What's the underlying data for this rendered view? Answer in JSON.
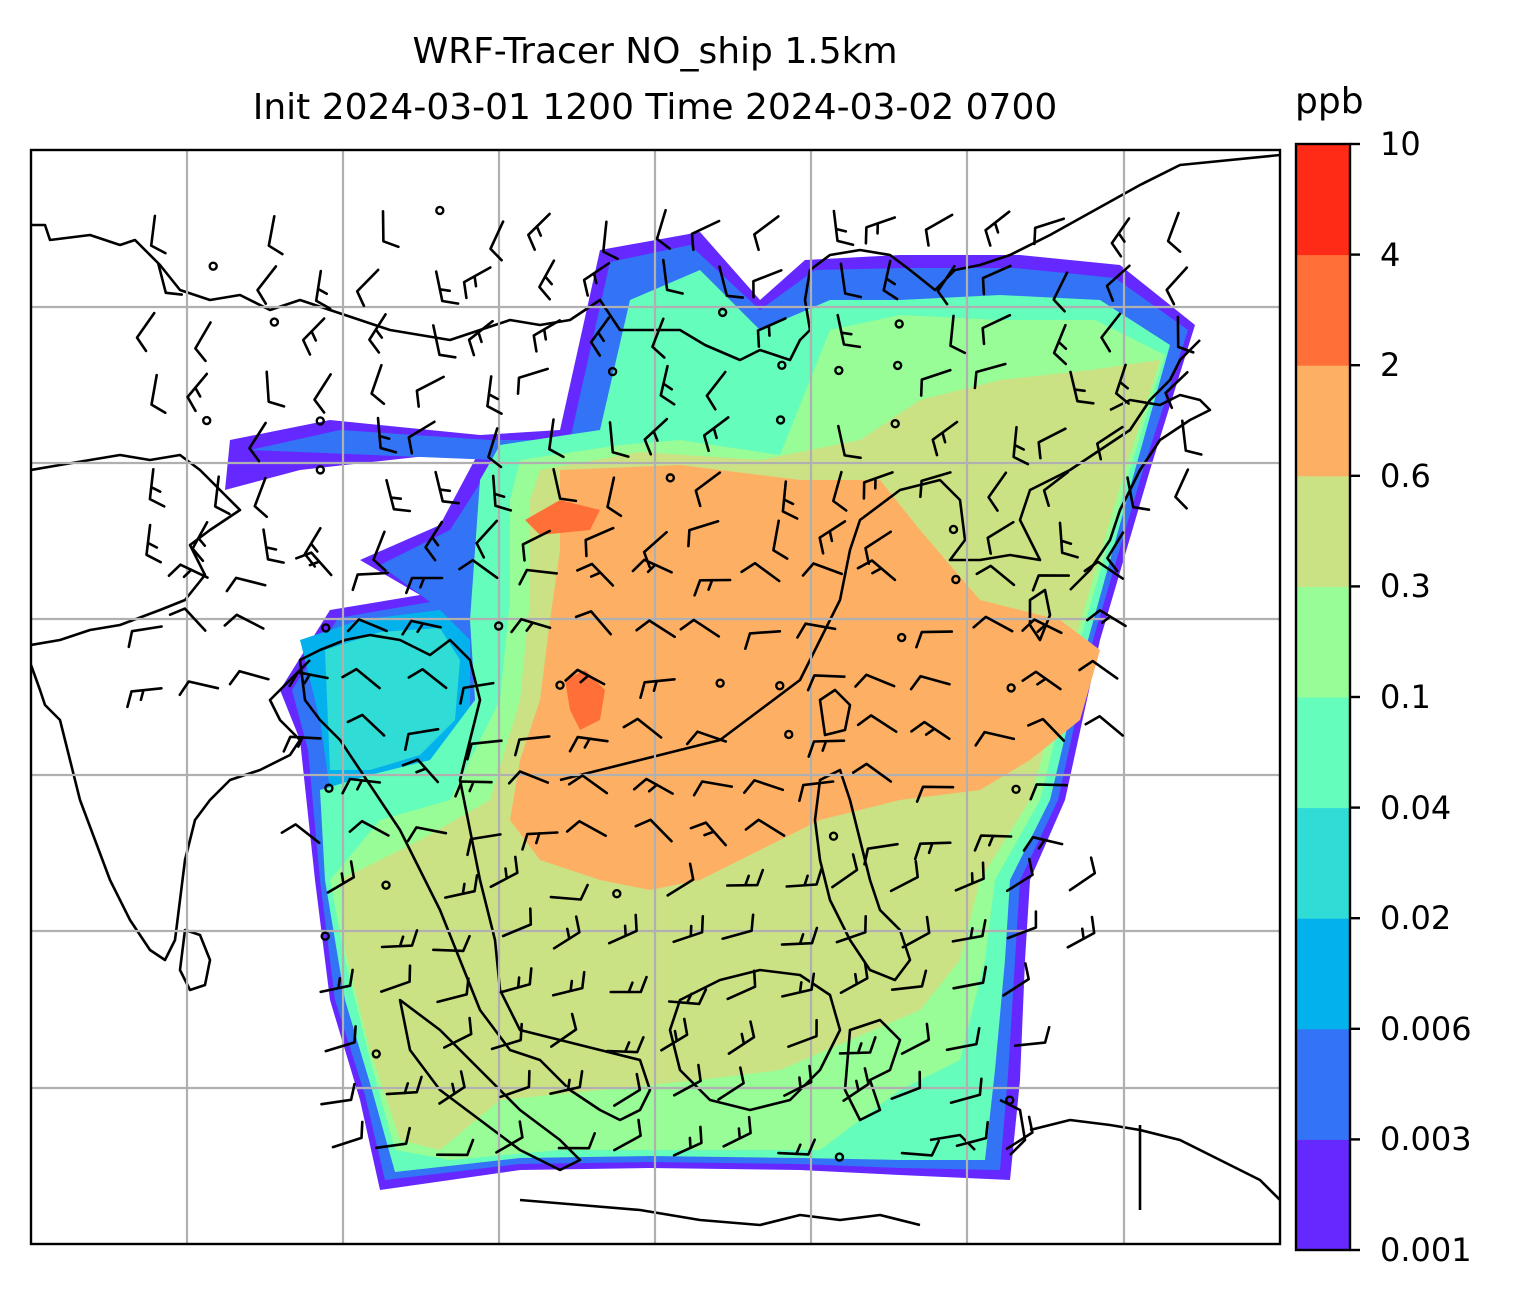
{
  "figure": {
    "title_line1": "WRF-Tracer NO_ship 1.5km",
    "title_line2": "Init 2024-03-01 1200 Time 2024-03-02 0700"
  },
  "colorbar": {
    "unit": "ppb",
    "ticks": [
      "0.001",
      "0.003",
      "0.006",
      "0.02",
      "0.04",
      "0.1",
      "0.3",
      "0.6",
      "2",
      "4",
      "10"
    ],
    "colors": [
      "#6529ff",
      "#3373f5",
      "#03b2ec",
      "#2fdcd6",
      "#65fdbb",
      "#98fc97",
      "#cbe284",
      "#fdb064",
      "#ff7038",
      "#ff2b16"
    ]
  },
  "map": {
    "land_outline_color": "#000000",
    "gridline_color": "#b0b0b0",
    "wind_barb_color": "#000000"
  }
}
